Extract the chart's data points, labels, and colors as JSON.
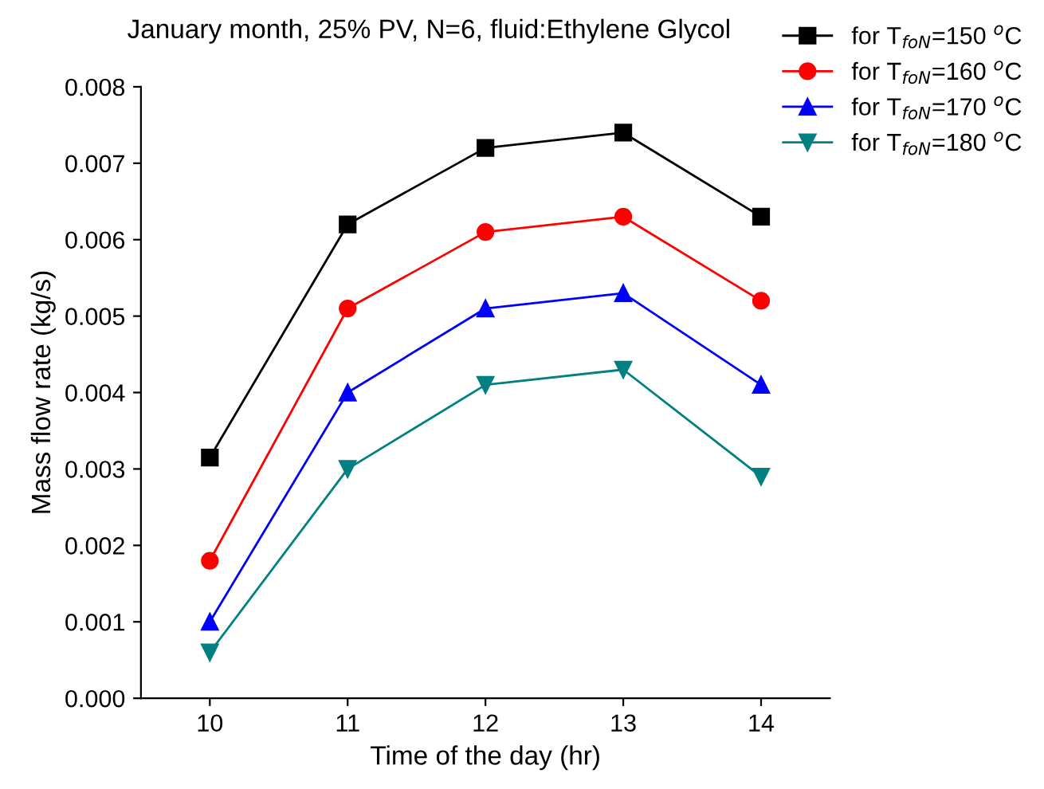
{
  "chart_data": {
    "type": "line",
    "title": "January month, 25% PV, N=6, fluid:Ethylene Glycol",
    "xlabel": "Time of the day (hr)",
    "ylabel": "Mass flow rate (kg/s)",
    "x": [
      10,
      11,
      12,
      13,
      14
    ],
    "series": [
      {
        "name": "for T$_{foN}$=150 $^{o}$C",
        "color": "#000000",
        "marker": "square",
        "values": [
          0.00315,
          0.0062,
          0.0072,
          0.0074,
          0.0063
        ]
      },
      {
        "name": "for T$_{foN}$=160 $^{o}$C",
        "color": "#ff0000",
        "marker": "circle",
        "values": [
          0.0018,
          0.0051,
          0.0061,
          0.0063,
          0.0052
        ]
      },
      {
        "name": "for T$_{foN}$=170 $^{o}$C",
        "color": "#0000ff",
        "marker": "triangle",
        "values": [
          0.001,
          0.004,
          0.0051,
          0.0053,
          0.0041
        ]
      },
      {
        "name": "for T$_{foN}$=180 $^{o}$C",
        "color": "#008080",
        "marker": "triangle_down",
        "values": [
          0.0006,
          0.003,
          0.0041,
          0.0043,
          0.0029
        ]
      }
    ],
    "xlim": [
      9.5,
      14.5
    ],
    "xticks": [
      10,
      11,
      12,
      13,
      14
    ],
    "ylim": [
      0,
      0.008
    ],
    "yticks": [
      {
        "value": 0,
        "label": "0.000"
      },
      {
        "value": 0.001,
        "label": "0.001"
      },
      {
        "value": 0.002,
        "label": "0.002"
      },
      {
        "value": 0.003,
        "label": "0.003"
      },
      {
        "value": 0.004,
        "label": "0.004"
      },
      {
        "value": 0.005,
        "label": "0.005"
      },
      {
        "value": 0.006,
        "label": "0.006"
      },
      {
        "value": 0.007,
        "label": "0.007"
      },
      {
        "value": 0.008,
        "label": "0.008"
      }
    ],
    "grid": false,
    "legend": "top right",
    "line_style": "solid"
  }
}
